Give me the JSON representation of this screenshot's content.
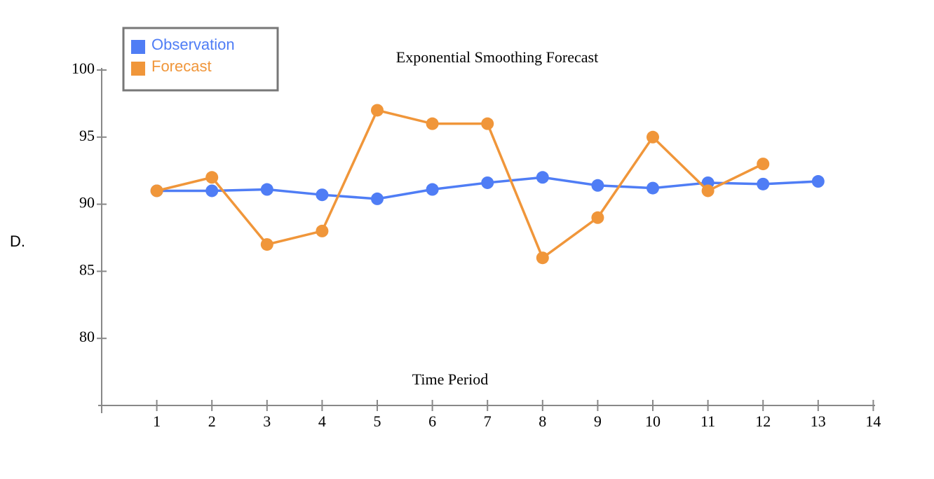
{
  "label": "D.",
  "chart_data": {
    "type": "line",
    "title": "Exponential Smoothing Forecast",
    "x_label": "Time Period",
    "x": [
      1,
      2,
      3,
      4,
      5,
      6,
      7,
      8,
      9,
      10,
      11,
      12,
      13
    ],
    "series": [
      {
        "name": "Observation",
        "color": "#4f7df5",
        "values": [
          91,
          91,
          91.1,
          90.7,
          90.4,
          91.1,
          91.6,
          92,
          91.4,
          91.2,
          91.6,
          91.5,
          91.7
        ]
      },
      {
        "name": "Forecast",
        "color": "#f0963a",
        "values": [
          91,
          92,
          87,
          88,
          97,
          96,
          96,
          86,
          89,
          95,
          91,
          93,
          null
        ]
      }
    ],
    "xlim": [
      0,
      14.1
    ],
    "ylim": [
      75,
      100.2
    ],
    "xticks": [
      1,
      2,
      3,
      4,
      5,
      6,
      7,
      8,
      9,
      10,
      11,
      12,
      13,
      14
    ],
    "yticks": [
      80,
      85,
      90,
      95,
      100
    ]
  }
}
